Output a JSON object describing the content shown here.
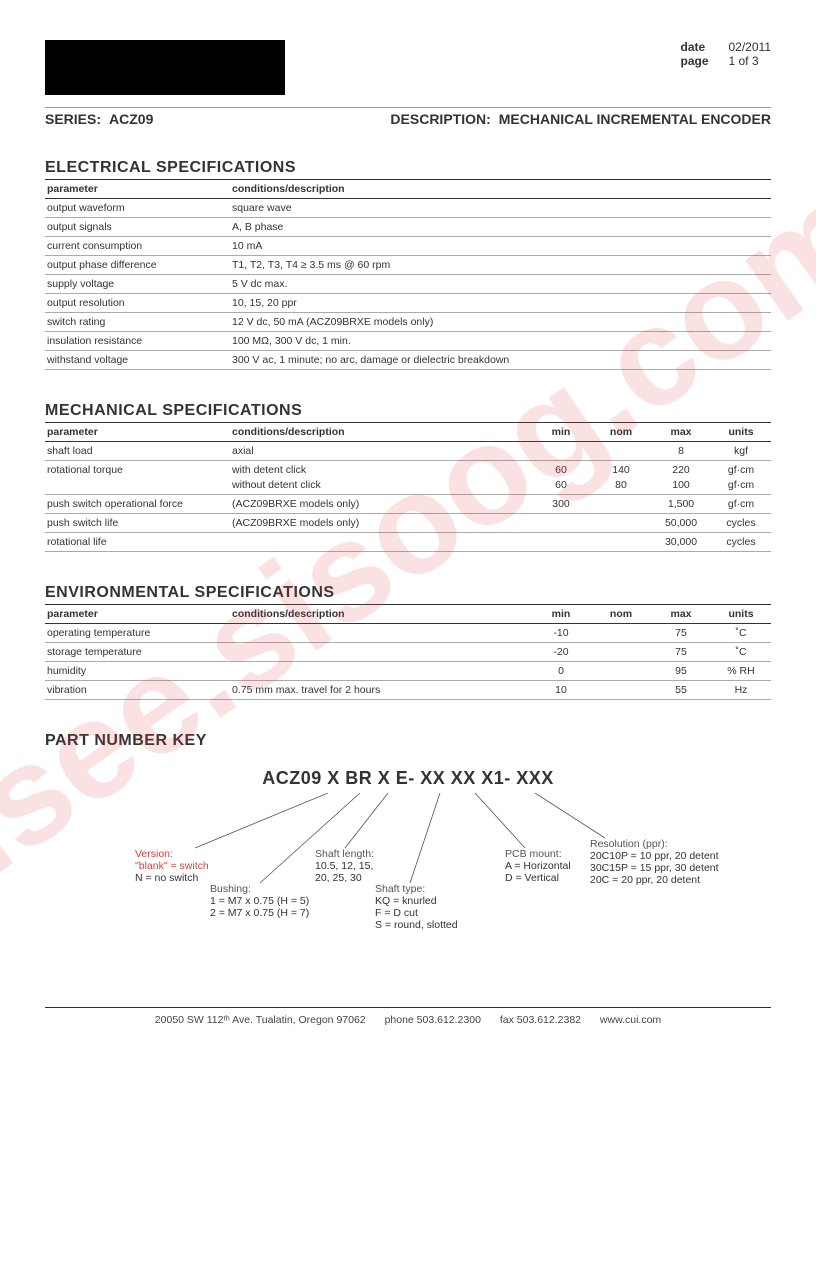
{
  "watermark": "isee.sisoog.com",
  "meta": {
    "date_label": "date",
    "date_val": "02/2011",
    "page_label": "page",
    "page_val": "1 of 3"
  },
  "titlebar": {
    "series_lab": "SERIES:",
    "series_val": "ACZ09",
    "desc_lab": "DESCRIPTION:",
    "desc_val": "MECHANICAL INCREMENTAL ENCODER"
  },
  "sect": {
    "elec": "ELECTRICAL SPECIFICATIONS",
    "mech": "MECHANICAL SPECIFICATIONS",
    "env": "ENVIRONMENTAL SPECIFICATIONS",
    "pnk": "PART NUMBER KEY"
  },
  "colh": {
    "param": "parameter",
    "cond": "conditions/description",
    "min": "min",
    "nom": "nom",
    "max": "max",
    "units": "units"
  },
  "elec": [
    {
      "p": "output waveform",
      "c": "square wave"
    },
    {
      "p": "output signals",
      "c": "A, B phase"
    },
    {
      "p": "current consumption",
      "c": "10 mA"
    },
    {
      "p": "output phase difference",
      "c": "T1, T2, T3, T4 ≥ 3.5 ms @ 60 rpm"
    },
    {
      "p": "supply voltage",
      "c": "5 V dc max."
    },
    {
      "p": "output resolution",
      "c": "10, 15, 20 ppr"
    },
    {
      "p": "switch rating",
      "c": "12 V dc, 50 mA (ACZ09BRXE models only)"
    },
    {
      "p": "insulation resistance",
      "c": "100 MΩ, 300 V dc, 1 min."
    },
    {
      "p": "withstand voltage",
      "c": "300 V ac, 1 minute; no arc, damage or dielectric breakdown"
    }
  ],
  "mech": [
    {
      "p": "shaft load",
      "c": "axial",
      "min": "",
      "nom": "",
      "max": "8",
      "u": "kgf"
    },
    {
      "p": "rotational torque",
      "c": "with detent click",
      "min": "60",
      "nom": "140",
      "max": "220",
      "u": "gf·cm",
      "sub": true
    },
    {
      "p": "",
      "c": "without detent click",
      "min": "60",
      "nom": "80",
      "max": "100",
      "u": "gf·cm"
    },
    {
      "p": "push switch operational force",
      "c": "(ACZ09BRXE models only)",
      "min": "300",
      "nom": "",
      "max": "1,500",
      "u": "gf·cm"
    },
    {
      "p": "push switch life",
      "c": "(ACZ09BRXE models only)",
      "min": "",
      "nom": "",
      "max": "50,000",
      "u": "cycles"
    },
    {
      "p": "rotational life",
      "c": "",
      "min": "",
      "nom": "",
      "max": "30,000",
      "u": "cycles"
    }
  ],
  "env": [
    {
      "p": "operating temperature",
      "c": "",
      "min": "-10",
      "nom": "",
      "max": "75",
      "u": "˚C"
    },
    {
      "p": "storage temperature",
      "c": "",
      "min": "-20",
      "nom": "",
      "max": "75",
      "u": "˚C"
    },
    {
      "p": "humidity",
      "c": "",
      "min": "0",
      "nom": "",
      "max": "95",
      "u": "% RH"
    },
    {
      "p": "vibration",
      "c": "0.75 mm max. travel for 2 hours",
      "min": "10",
      "nom": "",
      "max": "55",
      "u": "Hz"
    }
  ],
  "pnkey": "ACZ09 X BR X E- XX XX X1- XXX",
  "callouts": {
    "version": {
      "title": "Version:",
      "l1": "\"blank\" = switch",
      "l2": "N = no switch"
    },
    "bushing": {
      "title": "Bushing:",
      "l1": "1 = M7 x 0.75 (H = 5)",
      "l2": "2 = M7 x 0.75 (H = 7)"
    },
    "shaftlen": {
      "title": "Shaft length:",
      "l1": "10.5, 12, 15,",
      "l2": "20, 25, 30"
    },
    "shafttype": {
      "title": "Shaft type:",
      "l1": "KQ = knurled",
      "l2": "F = D cut",
      "l3": "S = round, slotted"
    },
    "pcb": {
      "title": "PCB mount:",
      "l1": "A = Horizontal",
      "l2": "D = Vertical"
    },
    "res": {
      "title": "Resolution (ppr):",
      "l1": "20C10P = 10 ppr, 20 detent",
      "l2": "30C15P = 15 ppr, 30 detent",
      "l3": "20C = 20 ppr, 20 detent"
    }
  },
  "footer": {
    "addr": "20050 SW 112ᵗʰ Ave. Tualatin, Oregon 97062",
    "phone": "phone 503.612.2300",
    "fax": "fax 503.612.2382",
    "web": "www.cui.com"
  }
}
